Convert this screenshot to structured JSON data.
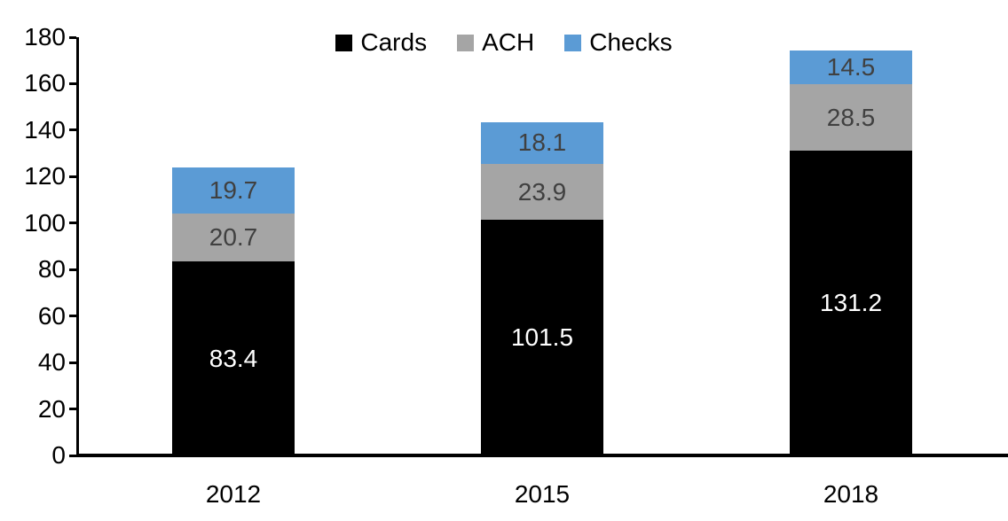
{
  "chart_data": {
    "type": "bar",
    "stacked": true,
    "title": "",
    "xlabel": "",
    "ylabel": "",
    "categories": [
      "2012",
      "2015",
      "2018"
    ],
    "series": [
      {
        "name": "Cards",
        "color": "#000000",
        "label_color": "#ffffff",
        "values": [
          83.4,
          101.5,
          131.2
        ]
      },
      {
        "name": "ACH",
        "color": "#a5a5a5",
        "label_color": "#404040",
        "values": [
          20.7,
          23.9,
          28.5
        ]
      },
      {
        "name": "Checks",
        "color": "#5b9bd5",
        "label_color": "#404040",
        "values": [
          19.7,
          18.1,
          14.5
        ]
      }
    ],
    "totals": [
      123.8,
      143.5,
      174.2
    ],
    "ylim": [
      0,
      180
    ],
    "ytick_step": 20,
    "yticks": [
      0,
      20,
      40,
      60,
      80,
      100,
      120,
      140,
      160,
      180
    ],
    "grid": false,
    "legend_position": "top-center",
    "axis_color": "#000000",
    "value_label_decimals": 1
  }
}
